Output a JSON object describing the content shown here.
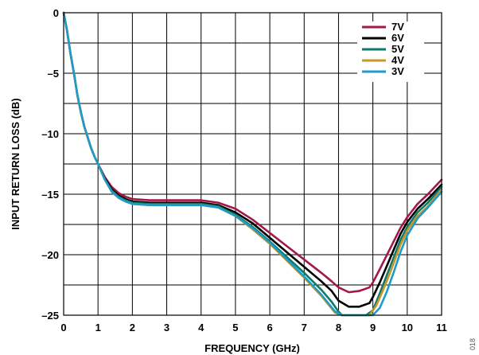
{
  "chart_data": {
    "type": "line",
    "xlabel": "FREQUENCY (GHz)",
    "ylabel": "INPUT RETURN LOSS (dB)",
    "xlim": [
      0,
      11
    ],
    "ylim": [
      -25,
      0
    ],
    "x_ticks": [
      0,
      1,
      2,
      3,
      4,
      5,
      6,
      7,
      8,
      9,
      10,
      11
    ],
    "y_ticks": [
      0,
      -5,
      -10,
      -15,
      -20,
      -25
    ],
    "y_tick_labels": [
      "0",
      "–5",
      "–10",
      "–15",
      "–20",
      "–25"
    ],
    "grid": true,
    "legend_position": "top-right",
    "figure_id": "018",
    "series": [
      {
        "name": "7V",
        "color": "#a3174a",
        "x": [
          0,
          0.1,
          0.2,
          0.3,
          0.4,
          0.5,
          0.6,
          0.7,
          0.8,
          0.9,
          1.0,
          1.2,
          1.4,
          1.6,
          1.8,
          2.0,
          2.5,
          3.0,
          3.5,
          4.0,
          4.5,
          5.0,
          5.5,
          6.0,
          6.5,
          7.0,
          7.5,
          7.8,
          8.0,
          8.3,
          8.6,
          8.9,
          9.0,
          9.2,
          9.5,
          9.8,
          10.0,
          10.3,
          10.6,
          11.0
        ],
        "y": [
          0,
          -1.5,
          -3.4,
          -5.0,
          -6.8,
          -8.2,
          -9.4,
          -10.3,
          -11.2,
          -11.9,
          -12.5,
          -13.6,
          -14.4,
          -14.9,
          -15.2,
          -15.4,
          -15.5,
          -15.5,
          -15.5,
          -15.5,
          -15.7,
          -16.2,
          -17.1,
          -18.2,
          -19.3,
          -20.4,
          -21.5,
          -22.2,
          -22.7,
          -23.1,
          -23.0,
          -22.7,
          -22.3,
          -21.2,
          -19.5,
          -17.8,
          -16.9,
          -15.8,
          -15.0,
          -13.8
        ]
      },
      {
        "name": "6V",
        "color": "#000000",
        "x": [
          0,
          0.1,
          0.2,
          0.3,
          0.4,
          0.5,
          0.6,
          0.7,
          0.8,
          0.9,
          1.0,
          1.2,
          1.4,
          1.6,
          1.8,
          2.0,
          2.5,
          3.0,
          3.5,
          4.0,
          4.5,
          5.0,
          5.5,
          6.0,
          6.5,
          7.0,
          7.5,
          7.8,
          8.0,
          8.3,
          8.6,
          8.9,
          9.0,
          9.2,
          9.5,
          9.8,
          10.0,
          10.3,
          10.6,
          11.0
        ],
        "y": [
          0,
          -1.5,
          -3.4,
          -5.0,
          -6.8,
          -8.2,
          -9.4,
          -10.3,
          -11.2,
          -11.9,
          -12.5,
          -13.7,
          -14.6,
          -15.1,
          -15.4,
          -15.6,
          -15.7,
          -15.7,
          -15.7,
          -15.7,
          -15.9,
          -16.5,
          -17.4,
          -18.6,
          -19.8,
          -21.0,
          -22.2,
          -23.0,
          -23.8,
          -24.3,
          -24.3,
          -24.0,
          -23.5,
          -22.3,
          -20.3,
          -18.3,
          -17.3,
          -16.2,
          -15.4,
          -14.2
        ]
      },
      {
        "name": "5V",
        "color": "#0f7a6a",
        "x": [
          0,
          0.1,
          0.2,
          0.3,
          0.4,
          0.5,
          0.6,
          0.7,
          0.8,
          0.9,
          1.0,
          1.2,
          1.4,
          1.6,
          1.8,
          2.0,
          2.5,
          3.0,
          3.5,
          4.0,
          4.5,
          5.0,
          5.5,
          6.0,
          6.5,
          7.0,
          7.5,
          7.8,
          8.0,
          8.1,
          8.3,
          8.8,
          9.0,
          9.2,
          9.5,
          9.8,
          10.0,
          10.3,
          10.6,
          11.0
        ],
        "y": [
          0,
          -1.5,
          -3.4,
          -5.0,
          -6.8,
          -8.2,
          -9.4,
          -10.3,
          -11.2,
          -11.9,
          -12.5,
          -13.8,
          -14.7,
          -15.2,
          -15.5,
          -15.7,
          -15.8,
          -15.8,
          -15.8,
          -15.8,
          -16.0,
          -16.7,
          -17.7,
          -18.9,
          -20.2,
          -21.5,
          -22.9,
          -23.9,
          -24.7,
          -25.0,
          -25.0,
          -25.0,
          -24.6,
          -23.2,
          -21.0,
          -18.8,
          -17.7,
          -16.5,
          -15.7,
          -14.4
        ]
      },
      {
        "name": "4V",
        "color": "#c8962a",
        "x": [
          0,
          0.1,
          0.2,
          0.3,
          0.4,
          0.5,
          0.6,
          0.7,
          0.8,
          0.9,
          1.0,
          1.2,
          1.4,
          1.6,
          1.8,
          2.0,
          2.5,
          3.0,
          3.5,
          4.0,
          4.5,
          5.0,
          5.5,
          6.0,
          6.5,
          7.0,
          7.5,
          7.7,
          7.9,
          8.1,
          8.6,
          8.9,
          9.1,
          9.3,
          9.5,
          9.8,
          10.0,
          10.3,
          10.6,
          11.0
        ],
        "y": [
          0,
          -1.5,
          -3.4,
          -5.0,
          -6.8,
          -8.2,
          -9.4,
          -10.3,
          -11.2,
          -11.9,
          -12.5,
          -13.8,
          -14.8,
          -15.3,
          -15.6,
          -15.8,
          -15.9,
          -15.9,
          -15.9,
          -15.9,
          -16.1,
          -16.8,
          -17.9,
          -19.1,
          -20.5,
          -21.9,
          -23.4,
          -24.1,
          -24.8,
          -25.0,
          -25.0,
          -25.0,
          -24.2,
          -22.9,
          -21.5,
          -19.2,
          -18.0,
          -16.8,
          -16.0,
          -14.6
        ]
      },
      {
        "name": "3V",
        "color": "#1f9bc9",
        "x": [
          0,
          0.1,
          0.2,
          0.3,
          0.4,
          0.5,
          0.6,
          0.7,
          0.8,
          0.9,
          1.0,
          1.2,
          1.4,
          1.6,
          1.8,
          2.0,
          2.5,
          3.0,
          3.5,
          4.0,
          4.5,
          5.0,
          5.5,
          6.0,
          6.5,
          7.0,
          7.5,
          7.7,
          7.9,
          8.1,
          8.6,
          9.0,
          9.2,
          9.4,
          9.6,
          9.8,
          10.0,
          10.3,
          10.6,
          11.0
        ],
        "y": [
          0,
          -1.5,
          -3.4,
          -5.0,
          -6.8,
          -8.2,
          -9.4,
          -10.3,
          -11.2,
          -11.9,
          -12.5,
          -13.8,
          -14.8,
          -15.3,
          -15.6,
          -15.8,
          -15.9,
          -15.9,
          -15.9,
          -15.9,
          -16.1,
          -16.8,
          -17.8,
          -19.0,
          -20.4,
          -21.8,
          -23.3,
          -24.0,
          -24.7,
          -25.0,
          -25.0,
          -25.0,
          -24.4,
          -23.1,
          -21.5,
          -19.8,
          -18.4,
          -17.0,
          -16.1,
          -14.8
        ]
      }
    ]
  }
}
